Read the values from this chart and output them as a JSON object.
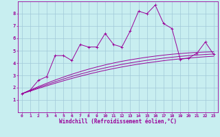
{
  "xlabel": "Windchill (Refroidissement éolien,°C)",
  "background_color": "#c8eef0",
  "grid_color": "#a0c8d8",
  "line_color": "#990099",
  "x_data": [
    0,
    1,
    2,
    3,
    4,
    5,
    6,
    7,
    8,
    9,
    10,
    11,
    12,
    13,
    14,
    15,
    16,
    17,
    18,
    19,
    20,
    21,
    22,
    23
  ],
  "y_main": [
    1.5,
    1.8,
    2.6,
    2.9,
    4.6,
    4.6,
    4.2,
    5.5,
    5.3,
    5.3,
    6.4,
    5.5,
    5.3,
    6.6,
    8.2,
    8.0,
    8.7,
    7.2,
    6.8,
    4.3,
    4.4,
    4.8,
    5.7,
    4.7
  ],
  "y_reg1": [
    1.5,
    1.72,
    1.94,
    2.15,
    2.36,
    2.56,
    2.75,
    2.93,
    3.1,
    3.26,
    3.41,
    3.55,
    3.68,
    3.8,
    3.91,
    4.01,
    4.1,
    4.19,
    4.27,
    4.34,
    4.4,
    4.46,
    4.51,
    4.55
  ],
  "y_reg2": [
    1.5,
    1.76,
    2.01,
    2.25,
    2.48,
    2.7,
    2.91,
    3.1,
    3.28,
    3.45,
    3.61,
    3.75,
    3.89,
    4.01,
    4.12,
    4.22,
    4.31,
    4.4,
    4.47,
    4.54,
    4.6,
    4.65,
    4.69,
    4.73
  ],
  "y_reg3": [
    1.5,
    1.8,
    2.09,
    2.36,
    2.62,
    2.86,
    3.09,
    3.3,
    3.5,
    3.68,
    3.85,
    4.0,
    4.14,
    4.26,
    4.37,
    4.47,
    4.56,
    4.64,
    4.71,
    4.77,
    4.82,
    4.86,
    4.89,
    4.91
  ],
  "xlim": [
    -0.5,
    23.5
  ],
  "ylim": [
    0,
    9
  ],
  "xticks": [
    0,
    1,
    2,
    3,
    4,
    5,
    6,
    7,
    8,
    9,
    10,
    11,
    12,
    13,
    14,
    15,
    16,
    17,
    18,
    19,
    20,
    21,
    22,
    23
  ],
  "yticks": [
    1,
    2,
    3,
    4,
    5,
    6,
    7,
    8
  ]
}
